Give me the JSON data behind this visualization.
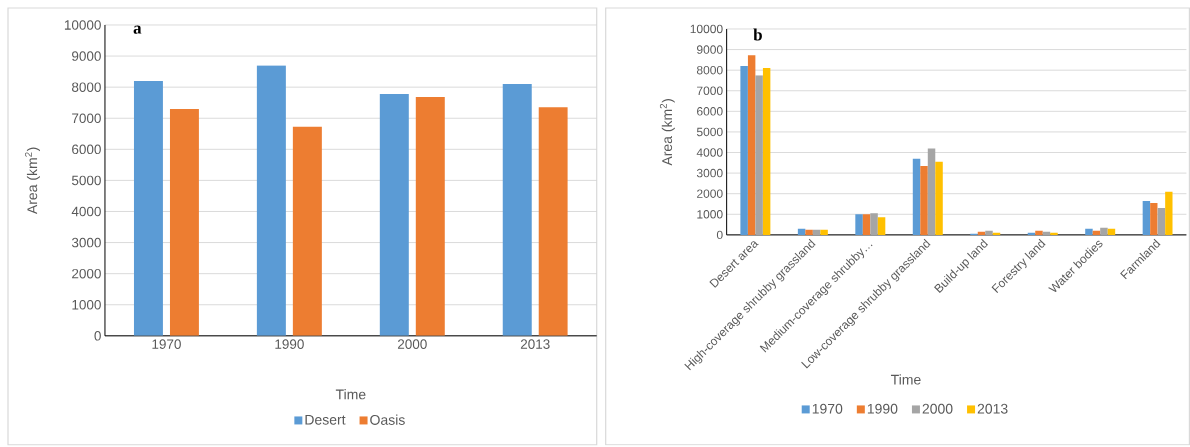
{
  "chart_data": [
    {
      "type": "bar",
      "title": "a",
      "xlabel": "Time",
      "ylabel": "Area (km$^{2}$)",
      "categories": [
        "1970",
        "1990",
        "2000",
        "2013"
      ],
      "series": [
        {
          "name": "Desert",
          "color": "#5b9bd5",
          "values": [
            8200,
            8700,
            7780,
            8100
          ]
        },
        {
          "name": "Oasis",
          "color": "#ed7d31",
          "values": [
            7300,
            6730,
            7680,
            7350
          ]
        }
      ],
      "ylim": [
        0,
        10000
      ],
      "yticks": [
        0,
        1000,
        2000,
        3000,
        4000,
        5000,
        6000,
        7000,
        8000,
        9000,
        10000
      ],
      "grid": "y",
      "legend": "bottom"
    },
    {
      "type": "bar",
      "title": "b",
      "xlabel": "Time",
      "ylabel": "Area (km$^{2}$)",
      "categories": [
        "Desert area",
        "High-coverage shrubby grassland",
        "Medium-coverage shrubby…",
        "Low-coverage shrubby grassland",
        "Build-up land",
        "Forestry land",
        "Water bodies",
        "Farmland"
      ],
      "series": [
        {
          "name": "1970",
          "color": "#5b9bd5",
          "values": [
            8200,
            300,
            1000,
            3700,
            50,
            100,
            300,
            1650
          ]
        },
        {
          "name": "1990",
          "color": "#ed7d31",
          "values": [
            8730,
            250,
            1000,
            3350,
            150,
            200,
            200,
            1550
          ]
        },
        {
          "name": "2000",
          "color": "#a5a5a5",
          "values": [
            7750,
            250,
            1050,
            4200,
            200,
            150,
            350,
            1300
          ]
        },
        {
          "name": "2013",
          "color": "#ffc000",
          "values": [
            8100,
            250,
            850,
            3550,
            100,
            100,
            300,
            2100
          ]
        }
      ],
      "ylim": [
        0,
        10000
      ],
      "yticks": [
        0,
        1000,
        2000,
        3000,
        4000,
        5000,
        6000,
        7000,
        8000,
        9000,
        10000
      ],
      "grid": "y",
      "legend": "bottom"
    }
  ]
}
